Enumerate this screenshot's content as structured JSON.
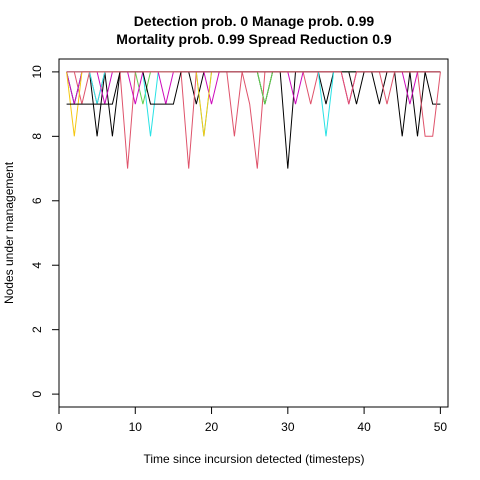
{
  "chart_data": {
    "type": "line",
    "title_line1": "Detection prob. 0 Manage prob. 0.99",
    "title_line2": "Mortality prob. 0.99 Spread Reduction 0.9",
    "xlabel": "Time since incursion detected (timesteps)",
    "ylabel": "Nodes under management",
    "xlim": [
      0,
      51
    ],
    "ylim": [
      -0.4,
      10.4
    ],
    "xticks": [
      0,
      10,
      20,
      30,
      40,
      50
    ],
    "yticks": [
      0,
      2,
      4,
      6,
      8,
      10
    ],
    "grid": false,
    "x": [
      1,
      2,
      3,
      4,
      5,
      6,
      7,
      8,
      9,
      10,
      11,
      12,
      13,
      14,
      15,
      16,
      17,
      18,
      19,
      20,
      21,
      22,
      23,
      24,
      25,
      26,
      27,
      28,
      29,
      30,
      31,
      32,
      33,
      34,
      35,
      36,
      37,
      38,
      39,
      40,
      41,
      42,
      43,
      44,
      45,
      46,
      47,
      48,
      49,
      50
    ],
    "series": [
      {
        "color": "#000000",
        "values": [
          10,
          10,
          10,
          10,
          8,
          10,
          8,
          10,
          10,
          10,
          10,
          10,
          10,
          10,
          10,
          10,
          10,
          9,
          10,
          10,
          10,
          10,
          10,
          10,
          10,
          10,
          9,
          10,
          10,
          7,
          10,
          10,
          10,
          10,
          9,
          10,
          10,
          10,
          9,
          10,
          10,
          9,
          10,
          10,
          8,
          10,
          8,
          10,
          9,
          9
        ]
      },
      {
        "color": "#DF536B",
        "values": [
          10,
          10,
          9,
          10,
          9,
          10,
          10,
          10,
          7,
          10,
          10,
          10,
          10,
          10,
          10,
          10,
          7,
          10,
          10,
          10,
          10,
          10,
          8,
          10,
          9,
          7,
          10,
          10,
          10,
          10,
          10,
          10,
          9,
          10,
          10,
          10,
          10,
          10,
          10,
          10,
          10,
          10,
          9,
          10,
          10,
          10,
          10,
          8,
          8,
          10
        ]
      },
      {
        "color": "#61D04F",
        "values": [
          10,
          9,
          10,
          10,
          10,
          10,
          10,
          10,
          10,
          10,
          9,
          10,
          10,
          10,
          10,
          10,
          10,
          10,
          10,
          10,
          10,
          10,
          10,
          10,
          10,
          10,
          9,
          10,
          10,
          10,
          10,
          10,
          10,
          10,
          10,
          10,
          10,
          10,
          10,
          10,
          10,
          10,
          10,
          10,
          10,
          10,
          10,
          10,
          10,
          10
        ]
      },
      {
        "color": "#2297E6",
        "values": [
          10,
          9,
          10,
          10,
          10,
          10,
          10,
          10,
          10,
          10,
          10,
          10,
          10,
          10,
          10,
          10,
          10,
          10,
          10,
          10,
          10,
          10,
          10,
          10,
          10,
          10,
          10,
          10,
          10,
          10,
          10,
          10,
          10,
          10,
          10,
          10,
          10,
          10,
          10,
          10,
          10,
          10,
          10,
          10,
          10,
          10,
          10,
          10,
          10,
          10
        ]
      },
      {
        "color": "#28E2E5",
        "values": [
          10,
          10,
          10,
          10,
          9,
          10,
          10,
          10,
          10,
          10,
          10,
          8,
          10,
          10,
          10,
          10,
          10,
          10,
          8,
          10,
          10,
          10,
          10,
          10,
          10,
          10,
          10,
          10,
          10,
          10,
          10,
          10,
          10,
          10,
          8,
          10,
          10,
          10,
          10,
          10,
          10,
          10,
          10,
          10,
          10,
          10,
          10,
          10,
          10,
          10
        ]
      },
      {
        "color": "#CD0BBC",
        "values": [
          10,
          9,
          10,
          10,
          10,
          9,
          10,
          10,
          10,
          9,
          10,
          10,
          10,
          9,
          10,
          10,
          10,
          10,
          10,
          9,
          10,
          10,
          10,
          10,
          10,
          10,
          10,
          10,
          10,
          10,
          9,
          10,
          10,
          10,
          10,
          10,
          10,
          9,
          10,
          10,
          10,
          10,
          10,
          10,
          10,
          9,
          10,
          10,
          10,
          10
        ]
      },
      {
        "color": "#F5C710",
        "values": [
          10,
          8,
          10,
          10,
          10,
          10,
          10,
          10,
          10,
          10,
          10,
          10,
          10,
          10,
          10,
          10,
          10,
          10,
          8,
          10,
          10,
          10,
          10,
          10,
          10,
          10,
          10,
          10,
          10,
          10,
          10,
          10,
          10,
          10,
          10,
          10,
          10,
          10,
          10,
          10,
          10,
          10,
          10,
          10,
          10,
          10,
          10,
          10,
          10,
          10
        ]
      },
      {
        "color": "#9E9E9E",
        "values": [
          10,
          10,
          10,
          10,
          10,
          10,
          10,
          10,
          10,
          10,
          10,
          10,
          10,
          10,
          10,
          10,
          10,
          10,
          10,
          10,
          10,
          10,
          10,
          10,
          10,
          10,
          10,
          10,
          10,
          10,
          10,
          10,
          10,
          10,
          10,
          10,
          10,
          10,
          10,
          10,
          10,
          10,
          10,
          10,
          10,
          10,
          10,
          10,
          10,
          10
        ]
      },
      {
        "color": "#000000",
        "values": [
          9,
          9,
          9,
          9,
          9,
          9,
          9,
          10,
          10,
          10,
          10,
          9,
          9,
          9,
          9,
          10,
          10,
          10,
          10,
          10,
          10,
          10,
          10,
          10,
          10,
          10,
          10,
          10,
          10,
          10,
          10,
          10,
          10,
          10,
          10,
          10,
          10,
          10,
          10,
          10,
          10,
          10,
          10,
          10,
          10,
          10,
          10,
          10,
          10,
          10
        ]
      },
      {
        "color": "#DF536B",
        "values": [
          10,
          10,
          10,
          10,
          10,
          10,
          10,
          10,
          10,
          10,
          10,
          10,
          10,
          10,
          10,
          10,
          10,
          10,
          10,
          10,
          10,
          10,
          10,
          10,
          10,
          10,
          10,
          10,
          10,
          10,
          10,
          10,
          10,
          10,
          10,
          10,
          10,
          9,
          10,
          10,
          10,
          10,
          10,
          10,
          10,
          10,
          10,
          10,
          10,
          10
        ]
      }
    ]
  }
}
